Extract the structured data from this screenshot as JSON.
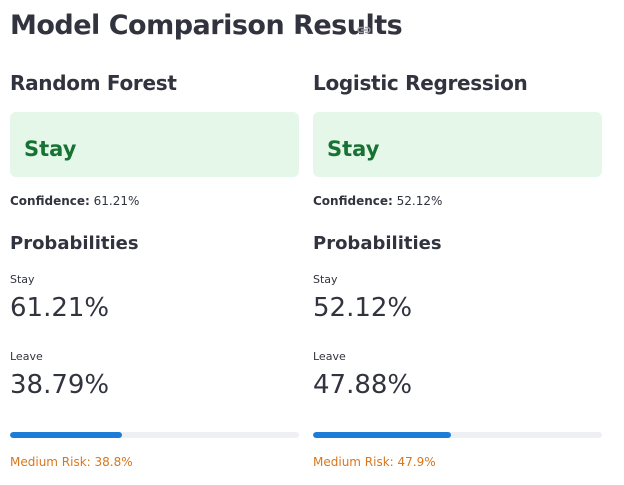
{
  "header": {
    "title": "Model Comparison Results"
  },
  "models": [
    {
      "name": "Random Forest",
      "prediction": "Stay",
      "confidence_label": "Confidence:",
      "confidence": "61.21%",
      "probabilities_heading": "Probabilities",
      "metrics": [
        {
          "label": "Stay",
          "value": "61.21%"
        },
        {
          "label": "Leave",
          "value": "38.79%"
        }
      ],
      "progress": 38.8,
      "risk": "Medium Risk: 38.8%"
    },
    {
      "name": "Logistic Regression",
      "prediction": "Stay",
      "confidence_label": "Confidence:",
      "confidence": "52.12%",
      "probabilities_heading": "Probabilities",
      "metrics": [
        {
          "label": "Stay",
          "value": "52.12%"
        },
        {
          "label": "Leave",
          "value": "47.88%"
        }
      ],
      "progress": 47.9,
      "risk": "Medium Risk: 47.9%"
    }
  ]
}
